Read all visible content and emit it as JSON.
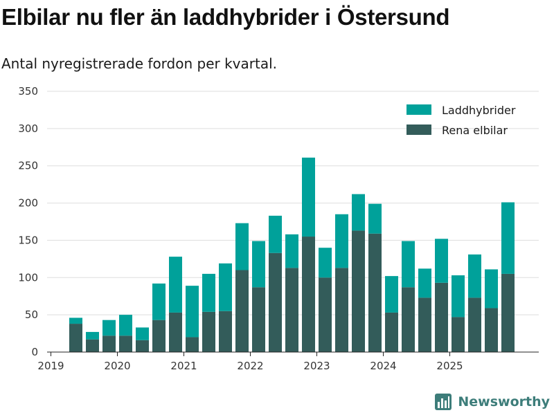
{
  "title": "Elbilar nu fler än laddhybrider i Östersund",
  "subtitle": "Antal nyregistrerade fordon per kvartal.",
  "brand": {
    "name": "Newsworthy"
  },
  "colors": {
    "hybrid": "#00a19a",
    "electric": "#335c5a",
    "grid": "#dddddd",
    "brand": "#3d7d7a"
  },
  "chart_data": {
    "type": "bar",
    "stacked": true,
    "title": "Elbilar nu fler än laddhybrider i Östersund",
    "subtitle": "Antal nyregistrerade fordon per kvartal.",
    "xlabel": "",
    "ylabel": "",
    "ylim": [
      0,
      350
    ],
    "yticks": [
      0,
      50,
      100,
      150,
      200,
      250,
      300,
      350
    ],
    "grid": true,
    "legend_position": "top-right",
    "year_ticks": [
      "2019",
      "2020",
      "2021",
      "2022",
      "2023",
      "2024",
      "2025"
    ],
    "categories": [
      "2019 Q2",
      "2019 Q3",
      "2019 Q4",
      "2020 Q1",
      "2020 Q2",
      "2020 Q3",
      "2020 Q4",
      "2021 Q1",
      "2021 Q2",
      "2021 Q3",
      "2021 Q4",
      "2022 Q1",
      "2022 Q2",
      "2022 Q3",
      "2022 Q4",
      "2023 Q1",
      "2023 Q2",
      "2023 Q3",
      "2023 Q4",
      "2024 Q1",
      "2024 Q2",
      "2024 Q3",
      "2024 Q4",
      "2025 Q1",
      "2025 Q2",
      "2025 Q3",
      "2025 Q4"
    ],
    "series": [
      {
        "name": "Rena elbilar",
        "values": [
          38,
          17,
          22,
          22,
          16,
          43,
          53,
          20,
          54,
          55,
          110,
          87,
          133,
          113,
          155,
          100,
          113,
          163,
          159,
          53,
          87,
          73,
          93,
          47,
          73,
          59,
          105
        ]
      },
      {
        "name": "Laddhybrider",
        "values": [
          8,
          10,
          21,
          28,
          17,
          49,
          75,
          69,
          51,
          64,
          63,
          62,
          50,
          45,
          106,
          40,
          72,
          49,
          40,
          49,
          62,
          39,
          59,
          56,
          58,
          52,
          96
        ]
      }
    ]
  }
}
